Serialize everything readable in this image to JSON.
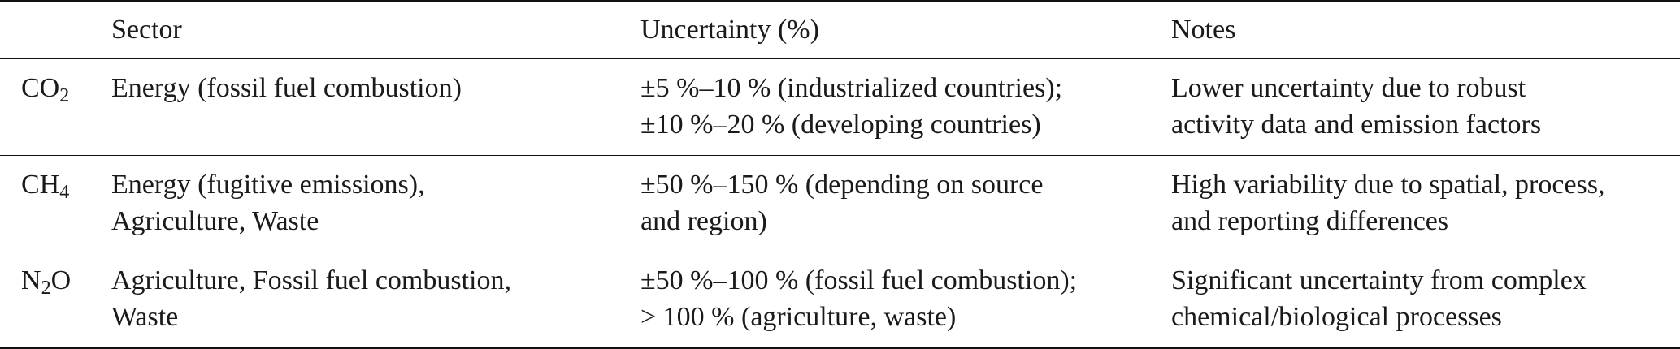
{
  "table": {
    "header": [
      "Sector",
      "Uncertainty (%)",
      "Notes"
    ],
    "rows": [
      {
        "gas": "CO",
        "gas_sub": "2",
        "sector": [
          "Energy (fossil fuel combustion)"
        ],
        "uncertainty": [
          "±5 %–10 % (industrialized countries);",
          "±10 %–20 % (developing countries)"
        ],
        "notes": [
          "Lower uncertainty due to robust",
          "activity data and emission factors"
        ]
      },
      {
        "gas": "CH",
        "gas_sub": "4",
        "sector": [
          "Energy (fugitive emissions),",
          "Agriculture, Waste"
        ],
        "uncertainty": [
          "±50 %–150 % (depending on source",
          "and region)"
        ],
        "notes": [
          "High variability due to spatial, process,",
          "and reporting differences"
        ]
      },
      {
        "gas": "N",
        "gas_sub": "2",
        "gas_tail": "O",
        "sector": [
          "Agriculture, Fossil fuel combustion,",
          "Waste"
        ],
        "uncertainty": [
          "±50 %–100 % (fossil fuel combustion);",
          "> 100 % (agriculture, waste)"
        ],
        "notes": [
          "Significant uncertainty from complex",
          "chemical/biological processes"
        ]
      }
    ]
  }
}
